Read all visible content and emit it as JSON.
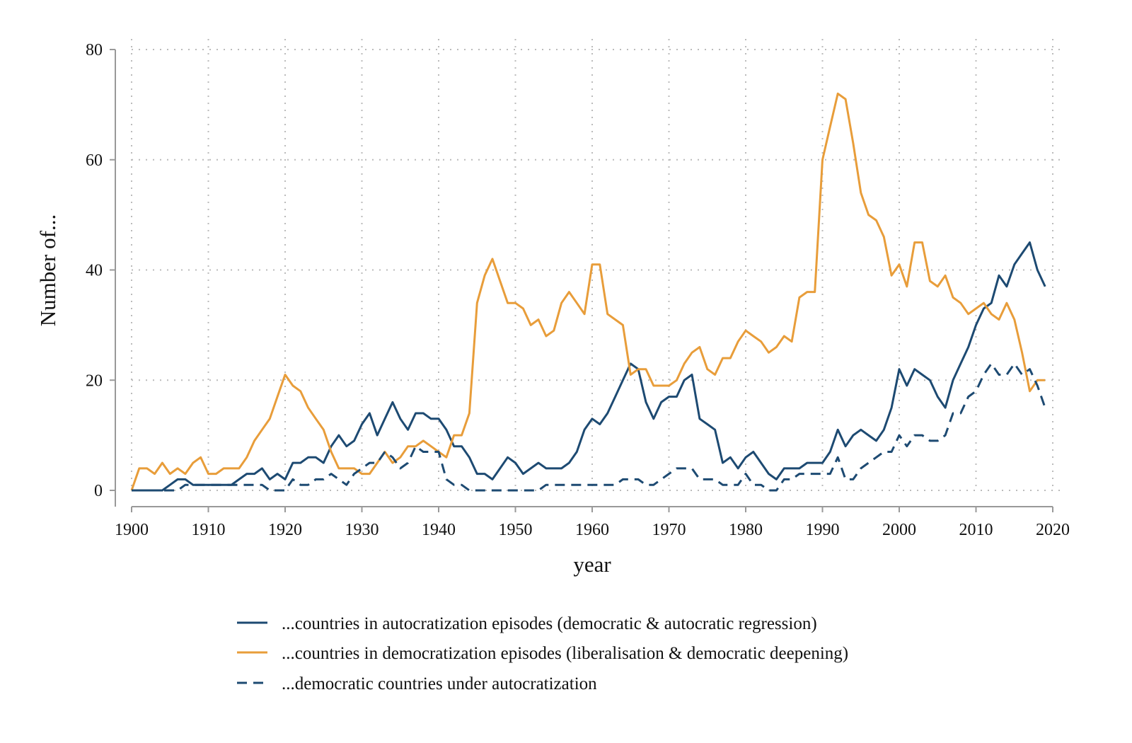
{
  "chart_data": {
    "type": "line",
    "title": "",
    "xlabel": "year",
    "ylabel": "Number of...",
    "xlim": [
      1900,
      2020
    ],
    "ylim": [
      0,
      80
    ],
    "xticks": [
      1900,
      1910,
      1920,
      1930,
      1940,
      1950,
      1960,
      1970,
      1980,
      1990,
      2000,
      2010,
      2020
    ],
    "yticks": [
      0,
      20,
      40,
      60,
      80
    ],
    "grid": true,
    "legend_position": "bottom",
    "x_start": 1900,
    "series": [
      {
        "name": "...countries in autocratization episodes (democratic & autocratic regression)",
        "color": "#1d4a72",
        "style": "solid",
        "values": [
          0,
          0,
          0,
          0,
          0,
          1,
          2,
          2,
          1,
          1,
          1,
          1,
          1,
          1,
          2,
          3,
          3,
          4,
          2,
          3,
          2,
          5,
          5,
          6,
          6,
          5,
          8,
          10,
          8,
          9,
          12,
          14,
          10,
          13,
          16,
          13,
          11,
          14,
          14,
          13,
          13,
          11,
          8,
          8,
          6,
          3,
          3,
          2,
          4,
          6,
          5,
          3,
          4,
          5,
          4,
          4,
          4,
          5,
          7,
          11,
          13,
          12,
          14,
          17,
          20,
          23,
          22,
          16,
          13,
          16,
          17,
          17,
          20,
          21,
          13,
          12,
          11,
          5,
          6,
          4,
          6,
          7,
          5,
          3,
          2,
          4,
          4,
          4,
          5,
          5,
          5,
          7,
          11,
          8,
          10,
          11,
          10,
          9,
          11,
          15,
          22,
          19,
          22,
          21,
          20,
          17,
          15,
          20,
          23,
          26,
          30,
          33,
          34,
          39,
          37,
          41,
          43,
          45,
          40,
          37
        ]
      },
      {
        "name": "...countries in democratization episodes (liberalisation & democratic deepening)",
        "color": "#e89d3a",
        "style": "solid",
        "values": [
          0,
          4,
          4,
          3,
          5,
          3,
          4,
          3,
          5,
          6,
          3,
          3,
          4,
          4,
          4,
          6,
          9,
          11,
          13,
          17,
          21,
          19,
          18,
          15,
          13,
          11,
          7,
          4,
          4,
          4,
          3,
          3,
          5,
          7,
          5,
          6,
          8,
          8,
          9,
          8,
          7,
          6,
          10,
          10,
          14,
          34,
          39,
          42,
          38,
          34,
          34,
          33,
          30,
          31,
          28,
          29,
          34,
          36,
          34,
          32,
          41,
          41,
          32,
          31,
          30,
          21,
          22,
          22,
          19,
          19,
          19,
          20,
          23,
          25,
          26,
          22,
          21,
          24,
          24,
          27,
          29,
          28,
          27,
          25,
          26,
          28,
          27,
          35,
          36,
          36,
          60,
          66,
          72,
          71,
          63,
          54,
          50,
          49,
          46,
          39,
          41,
          37,
          45,
          45,
          38,
          37,
          39,
          35,
          34,
          32,
          33,
          34,
          32,
          31,
          34,
          31,
          25,
          18,
          20,
          20
        ]
      },
      {
        "name": "...democratic countries under autocratization",
        "color": "#1d4a72",
        "style": "dashed",
        "values": [
          0,
          0,
          0,
          0,
          0,
          0,
          0,
          1,
          1,
          1,
          1,
          1,
          1,
          1,
          1,
          1,
          1,
          1,
          0,
          0,
          0,
          2,
          1,
          1,
          2,
          2,
          3,
          2,
          1,
          3,
          4,
          5,
          5,
          7,
          6,
          4,
          5,
          8,
          7,
          7,
          7,
          2,
          1,
          1,
          0,
          0,
          0,
          0,
          0,
          0,
          0,
          0,
          0,
          0,
          1,
          1,
          1,
          1,
          1,
          1,
          1,
          1,
          1,
          1,
          2,
          2,
          2,
          1,
          1,
          2,
          3,
          4,
          4,
          4,
          2,
          2,
          2,
          1,
          1,
          1,
          3,
          1,
          1,
          0,
          0,
          2,
          2,
          3,
          3,
          3,
          3,
          3,
          6,
          2,
          2,
          4,
          5,
          6,
          7,
          7,
          10,
          8,
          10,
          10,
          9,
          9,
          10,
          14,
          14,
          17,
          18,
          21,
          23,
          21,
          21,
          23,
          21,
          22,
          19,
          15
        ]
      }
    ]
  }
}
